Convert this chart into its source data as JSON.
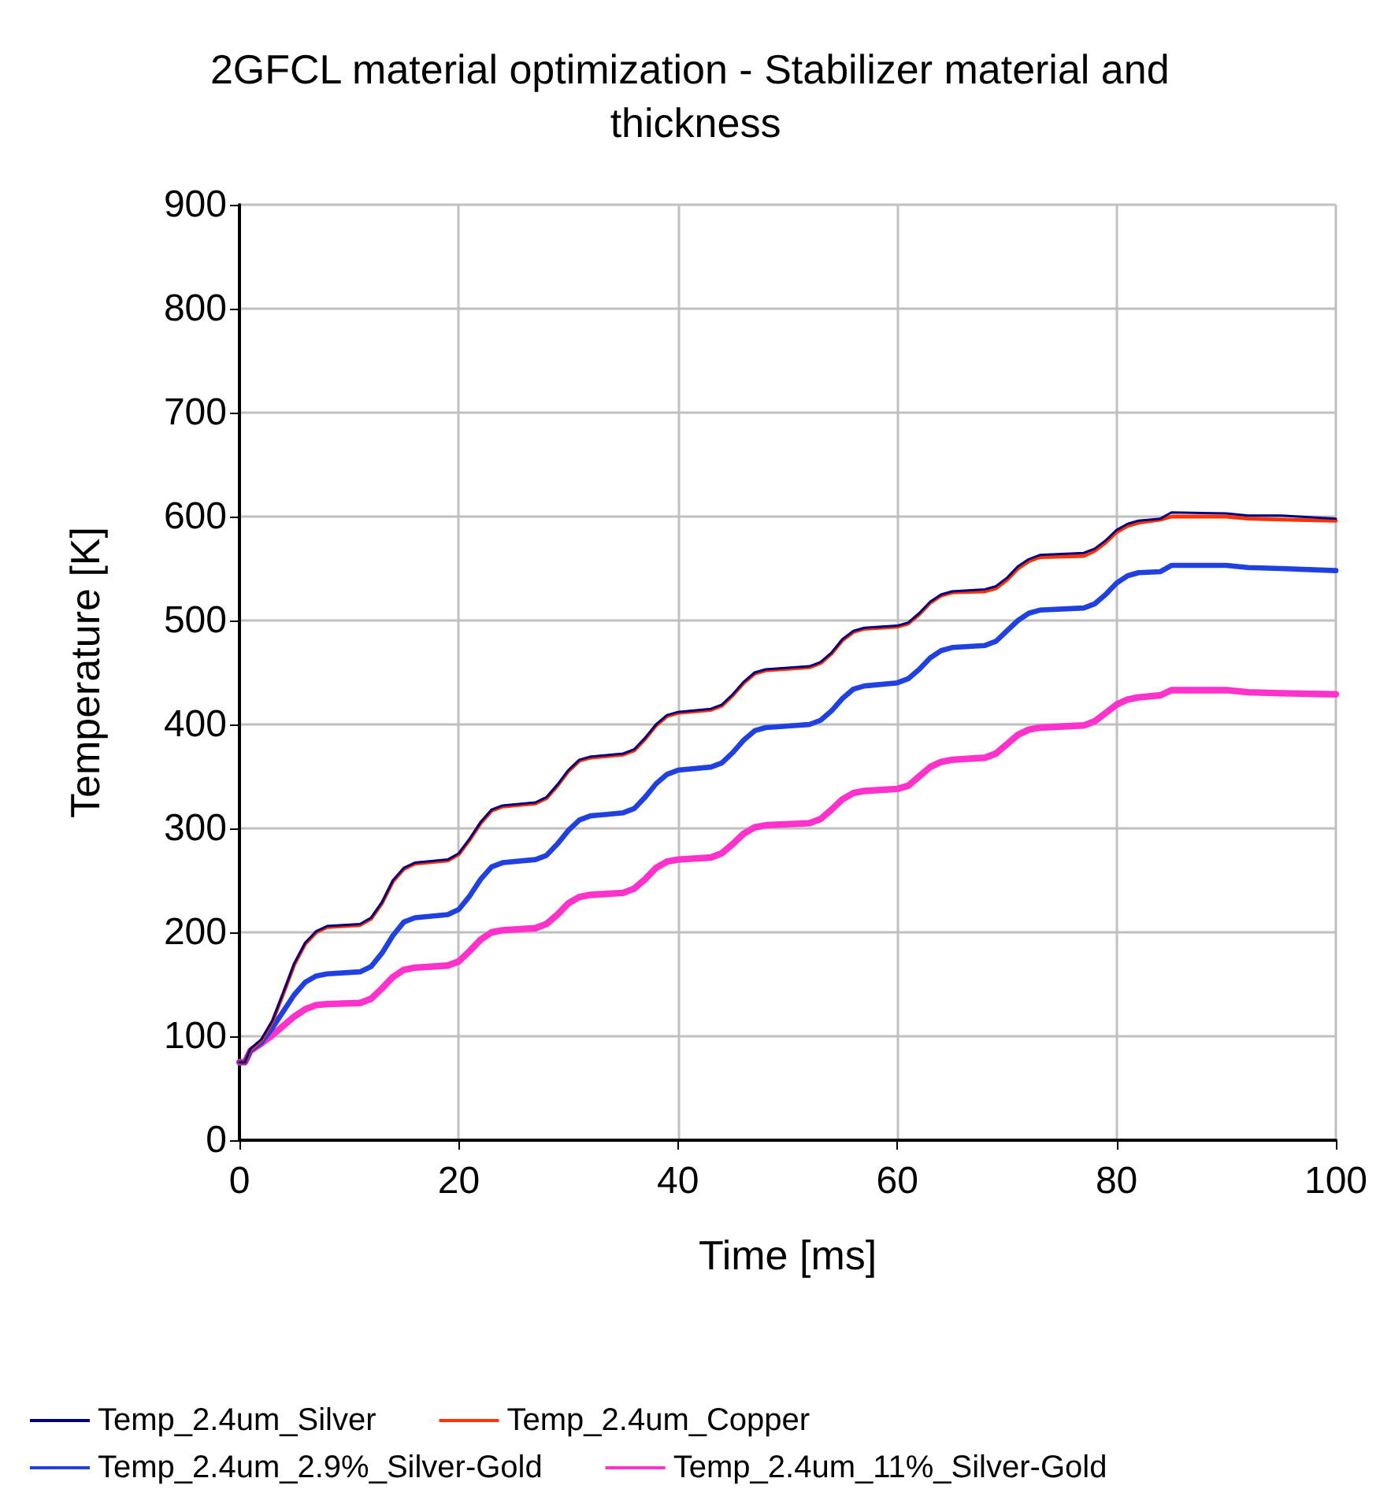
{
  "chart_data": {
    "type": "line",
    "title": "2GFCL material optimization - Stabilizer material and thickness",
    "xlabel": "Time [ms]",
    "ylabel": "Temperature [K]",
    "x": [
      0,
      0.5,
      1,
      2,
      3,
      4,
      5,
      6,
      7,
      8,
      11,
      12,
      13,
      14,
      15,
      16,
      19,
      20,
      21,
      22,
      23,
      24,
      27,
      28,
      29,
      30,
      31,
      32,
      35,
      36,
      37,
      38,
      39,
      40,
      43,
      44,
      45,
      46,
      47,
      48,
      52,
      53,
      54,
      55,
      56,
      57,
      60,
      61,
      62,
      63,
      64,
      65,
      68,
      69,
      70,
      71,
      72,
      73,
      77,
      78,
      79,
      80,
      81,
      82,
      84,
      85,
      90,
      92,
      95,
      100
    ],
    "series": [
      {
        "name": "Temp_2.4um_Silver",
        "color": "#000080",
        "values": [
          75,
          75,
          88,
          97,
          115,
          142,
          170,
          190,
          201,
          206,
          208,
          214,
          229,
          250,
          262,
          267,
          270,
          276,
          290,
          306,
          318,
          322,
          325,
          330,
          342,
          356,
          366,
          369,
          372,
          376,
          387,
          400,
          409,
          412,
          415,
          419,
          429,
          441,
          450,
          453,
          456,
          460,
          469,
          482,
          490,
          493,
          495,
          498,
          507,
          518,
          525,
          528,
          530,
          533,
          541,
          552,
          559,
          563,
          565,
          569,
          577,
          587,
          593,
          596,
          598,
          604,
          603,
          601,
          601,
          598
        ]
      },
      {
        "name": "Temp_2.4um_Copper",
        "color": "#ff3300",
        "values": [
          75,
          75,
          87,
          96,
          114,
          141,
          169,
          189,
          200,
          205,
          207,
          213,
          228,
          249,
          261,
          266,
          269,
          275,
          289,
          305,
          317,
          321,
          324,
          329,
          341,
          355,
          365,
          368,
          371,
          375,
          386,
          399,
          408,
          411,
          414,
          418,
          428,
          440,
          449,
          452,
          455,
          459,
          468,
          481,
          489,
          492,
          494,
          497,
          506,
          517,
          524,
          527,
          528,
          531,
          539,
          550,
          557,
          561,
          562,
          567,
          575,
          585,
          591,
          594,
          597,
          600,
          600,
          598,
          597,
          596
        ]
      },
      {
        "name": "Temp_2.4um_2.9%_Silver-Gold",
        "color": "#2040e0",
        "values": [
          75,
          75,
          86,
          94,
          108,
          124,
          140,
          152,
          158,
          160,
          162,
          167,
          180,
          197,
          210,
          214,
          217,
          222,
          235,
          251,
          263,
          267,
          270,
          274,
          285,
          298,
          308,
          312,
          315,
          319,
          330,
          343,
          352,
          356,
          359,
          363,
          373,
          385,
          394,
          397,
          400,
          404,
          413,
          425,
          434,
          437,
          440,
          444,
          453,
          464,
          471,
          474,
          476,
          480,
          490,
          500,
          507,
          510,
          512,
          516,
          525,
          536,
          543,
          546,
          547,
          553,
          553,
          551,
          550,
          548
        ]
      },
      {
        "name": "Temp_2.4um_11%_Silver-Gold",
        "color": "#ff33cc",
        "values": [
          75,
          75,
          86,
          93,
          101,
          110,
          119,
          126,
          130,
          131,
          132,
          136,
          146,
          157,
          164,
          166,
          168,
          172,
          182,
          193,
          200,
          202,
          204,
          208,
          217,
          228,
          234,
          236,
          238,
          242,
          251,
          262,
          268,
          270,
          272,
          276,
          285,
          295,
          301,
          303,
          305,
          309,
          318,
          328,
          334,
          336,
          338,
          341,
          350,
          359,
          364,
          366,
          368,
          372,
          381,
          390,
          395,
          397,
          399,
          403,
          411,
          419,
          424,
          426,
          428,
          433,
          433,
          431,
          430,
          429
        ]
      }
    ],
    "xlim": [
      0,
      100
    ],
    "xticks": [
      0,
      20,
      40,
      60,
      80,
      100
    ],
    "ylim": [
      0,
      900
    ],
    "yticks": [
      0,
      100,
      200,
      300,
      400,
      500,
      600,
      700,
      800,
      900
    ],
    "grid": true,
    "legend": "bottom",
    "marker": "none",
    "line_style": "solid"
  }
}
